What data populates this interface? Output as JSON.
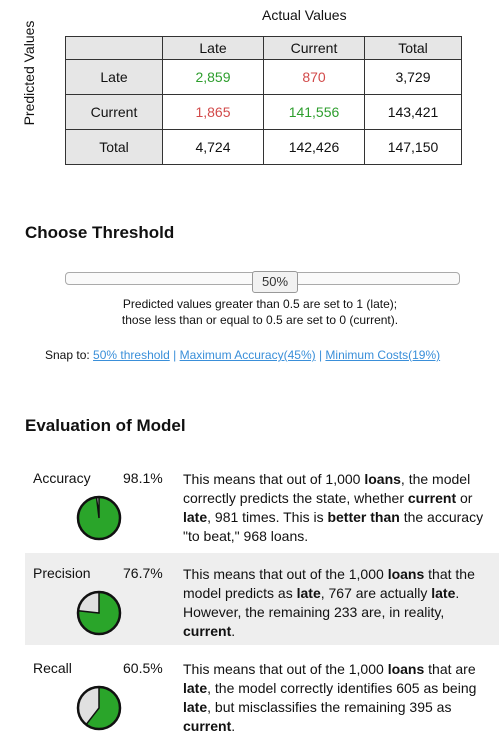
{
  "matrix": {
    "actual_title": "Actual Values",
    "predicted_label": "Predicted Values",
    "col_headers": [
      "Late",
      "Current",
      "Total"
    ],
    "rows": [
      {
        "label": "Late",
        "cells": [
          "2,859",
          "870",
          "3,729"
        ]
      },
      {
        "label": "Current",
        "cells": [
          "1,865",
          "141,556",
          "143,421"
        ]
      },
      {
        "label": "Total",
        "cells": [
          "4,724",
          "142,426",
          "147,150"
        ]
      }
    ],
    "colors": {
      "correct": "#2e9e2e",
      "wrong": "#d24a4a"
    }
  },
  "threshold": {
    "heading": "Choose Threshold",
    "value_label": "50%",
    "value": 0.5,
    "desc_line1": "Predicted values greater than 0.5 are set to 1 (late);",
    "desc_line2": "those less than or equal to 0.5 are set to 0 (current).",
    "snap_label": "Snap to:",
    "snap_links": [
      "50% threshold",
      "Maximum Accuracy(45%)",
      "Minimum Costs(19%)"
    ],
    "snap_sep": "|"
  },
  "evaluation": {
    "heading": "Evaluation of Model",
    "items": [
      {
        "name": "Accuracy",
        "value": "98.1%",
        "fraction": 0.981,
        "parts": [
          {
            "t": "This means that out of 1,000 ",
            "b": false
          },
          {
            "t": "loans",
            "b": true
          },
          {
            "t": ", the model correctly predicts the state, whether ",
            "b": false
          },
          {
            "t": "current",
            "b": true
          },
          {
            "t": " or ",
            "b": false
          },
          {
            "t": "late",
            "b": true
          },
          {
            "t": ", 981 times. This is ",
            "b": false
          },
          {
            "t": "better than",
            "b": true
          },
          {
            "t": " the accuracy \"to beat,\" 968 loans.",
            "b": false
          }
        ]
      },
      {
        "name": "Precision",
        "value": "76.7%",
        "fraction": 0.767,
        "parts": [
          {
            "t": "This means that out of the 1,000 ",
            "b": false
          },
          {
            "t": "loans",
            "b": true
          },
          {
            "t": " that the model predicts as ",
            "b": false
          },
          {
            "t": "late",
            "b": true
          },
          {
            "t": ", 767 are actually ",
            "b": false
          },
          {
            "t": "late",
            "b": true
          },
          {
            "t": ". However, the remaining 233 are, in reality, ",
            "b": false
          },
          {
            "t": "current",
            "b": true
          },
          {
            "t": ".",
            "b": false
          }
        ]
      },
      {
        "name": "Recall",
        "value": "60.5%",
        "fraction": 0.605,
        "parts": [
          {
            "t": "This means that out of the 1,000 ",
            "b": false
          },
          {
            "t": "loans",
            "b": true
          },
          {
            "t": " that are ",
            "b": false
          },
          {
            "t": "late",
            "b": true
          },
          {
            "t": ", the model correctly identifies 605 as being ",
            "b": false
          },
          {
            "t": "late",
            "b": true
          },
          {
            "t": ", but misclassifies the remaining 395 as ",
            "b": false
          },
          {
            "t": "current",
            "b": true
          },
          {
            "t": ".",
            "b": false
          }
        ]
      }
    ],
    "pie_colors": {
      "fill": "#2aa52a",
      "rest": "#e0e0e0",
      "stroke": "#111111"
    }
  }
}
